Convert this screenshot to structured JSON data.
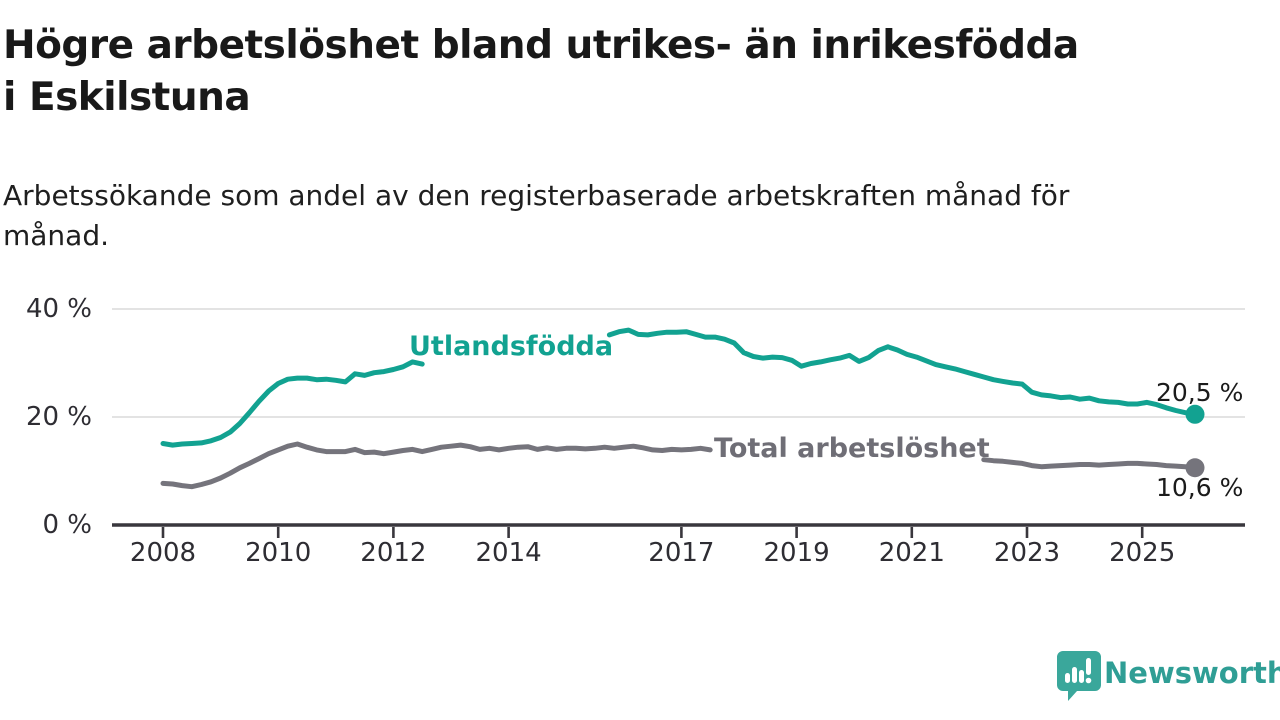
{
  "title": "Högre arbetslöshet bland utrikes- än inrikesfödda i Eskilstuna",
  "subtitle": "Arbetssökande som andel av den registerbaserade arbetskraften månad för månad.",
  "branding": {
    "logo_text": "Newsworthy"
  },
  "colors": {
    "teal": "#12a291",
    "gray": "#75747c",
    "axis": "#39373d",
    "grid": "#dadada",
    "tick_text": "#2e2d33",
    "value_text": "#1b1b1b",
    "logo_icon": "#3aa79b",
    "logo_text": "#2f9e95"
  },
  "chart_data": {
    "type": "line",
    "title": "Högre arbetslöshet bland utrikes- än inrikesfödda i Eskilstuna",
    "xlabel": "",
    "ylabel": "Arbetssökande som andel av den registerbaserade arbetskraften",
    "x_axis": {
      "ticks": [
        2008,
        2010,
        2012,
        2014,
        2017,
        2019,
        2021,
        2023,
        2025
      ],
      "domain": [
        2007.1,
        2026.8
      ]
    },
    "y_axis": {
      "domain": [
        0,
        43
      ],
      "ticks": [
        {
          "value": 0,
          "label": "0 %"
        },
        {
          "value": 20,
          "label": "20 %"
        },
        {
          "value": 40,
          "label": "40 %"
        }
      ]
    },
    "legend_position": "inline-labels",
    "grid": "horizontal",
    "unit": "percent",
    "series": [
      {
        "name": "Utlandsfödda",
        "color": "#12a291",
        "end_value": 20.5,
        "end_label": "20,5 %",
        "segments": [
          {
            "start": 2008.0,
            "step": 0.166667,
            "values": [
              15.1,
              14.8,
              15.0,
              15.1,
              15.2,
              15.6,
              16.2,
              17.2,
              18.8,
              20.8,
              22.9,
              24.8,
              26.2,
              27.0,
              27.2,
              27.2,
              26.9,
              27.0,
              26.8,
              26.5,
              28.0,
              27.7,
              28.2,
              28.4,
              28.8,
              29.3,
              30.2,
              29.8
            ]
          },
          {
            "start": 2015.75,
            "step": 0.166667,
            "values": [
              35.2,
              35.8,
              36.1,
              35.3,
              35.2,
              35.5,
              35.7,
              35.7,
              35.8,
              35.3,
              34.8,
              34.8,
              34.4,
              33.7,
              31.9,
              31.2,
              30.9,
              31.1,
              31.0,
              30.5,
              29.4,
              29.9,
              30.2,
              30.6,
              30.9,
              31.4,
              30.3,
              31.0,
              32.3,
              33.0,
              32.4,
              31.6,
              31.1,
              30.4,
              29.7,
              29.3,
              28.9,
              28.4,
              27.9,
              27.4,
              26.9,
              26.6,
              26.3,
              26.1,
              24.6,
              24.1,
              23.9,
              23.6,
              23.7,
              23.3,
              23.5,
              23.0,
              22.8,
              22.7,
              22.4,
              22.4,
              22.7,
              22.3,
              21.7,
              21.2,
              20.8,
              20.5
            ]
          }
        ]
      },
      {
        "name": "Total arbetslöshet",
        "color": "#75747c",
        "end_value": 10.6,
        "end_label": "10,6 %",
        "segments": [
          {
            "start": 2008.0,
            "step": 0.166667,
            "values": [
              7.7,
              7.6,
              7.3,
              7.1,
              7.5,
              8.0,
              8.7,
              9.6,
              10.6,
              11.4,
              12.3,
              13.2,
              13.9,
              14.6,
              15.0,
              14.4,
              13.9,
              13.6,
              13.6,
              13.6,
              14.0,
              13.4,
              13.5,
              13.2,
              13.5,
              13.8,
              14.0,
              13.6,
              14.0,
              14.4,
              14.6,
              14.8,
              14.5,
              14.0,
              14.2,
              13.9,
              14.2,
              14.4,
              14.5,
              14.0,
              14.3,
              14.0,
              14.2,
              14.2,
              14.1,
              14.2,
              14.4,
              14.2,
              14.4,
              14.6,
              14.3,
              13.9,
              13.8,
              14.0,
              13.9,
              14.0,
              14.2,
              13.9
            ]
          },
          {
            "start": 2022.25,
            "step": 0.166667,
            "values": [
              12.1,
              11.9,
              11.8,
              11.6,
              11.4,
              11.0,
              10.8,
              10.9,
              11.0,
              11.1,
              11.2,
              11.2,
              11.1,
              11.2,
              11.3,
              11.4,
              11.4,
              11.3,
              11.2,
              11.0,
              10.9,
              10.8,
              10.6
            ]
          }
        ]
      }
    ]
  }
}
